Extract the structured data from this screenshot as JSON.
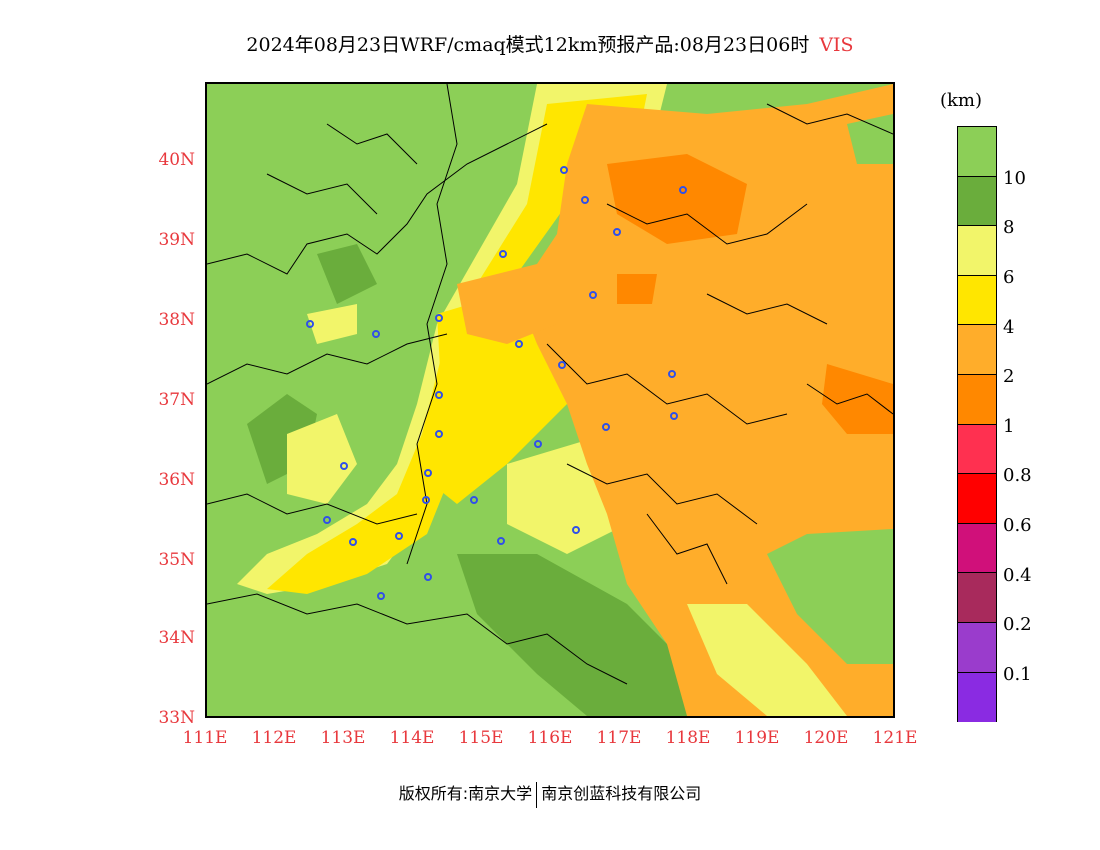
{
  "title": {
    "main": "2024年08月23日WRF/cmaq模式12km预报产品:08月23日06时",
    "variable": "VIS"
  },
  "axes": {
    "lat_labels": [
      "40N",
      "39N",
      "38N",
      "37N",
      "36N",
      "35N",
      "34N",
      "33N"
    ],
    "lon_labels": [
      "111E",
      "112E",
      "113E",
      "114E",
      "115E",
      "116E",
      "117E",
      "118E",
      "119E",
      "120E",
      "121E"
    ]
  },
  "legend": {
    "unit": "(km)",
    "labels": [
      "10",
      "8",
      "6",
      "4",
      "2",
      "1",
      "0.8",
      "0.6",
      "0.4",
      "0.2",
      "0.1"
    ],
    "colors": [
      "#8ccf57",
      "#6aad3c",
      "#f2f56a",
      "#ffe600",
      "#ffad2a",
      "#ff8800",
      "#ff3050",
      "#ff0000",
      "#d0107a",
      "#a82a5c",
      "#9a3ccc",
      "#8a2be2"
    ]
  },
  "footer": {
    "left": "版权所有:南京大学",
    "right": "南京创蓝科技有限公司"
  },
  "colors": {
    "axis_label": "#e8383d",
    "city_marker": "#3050e8"
  }
}
